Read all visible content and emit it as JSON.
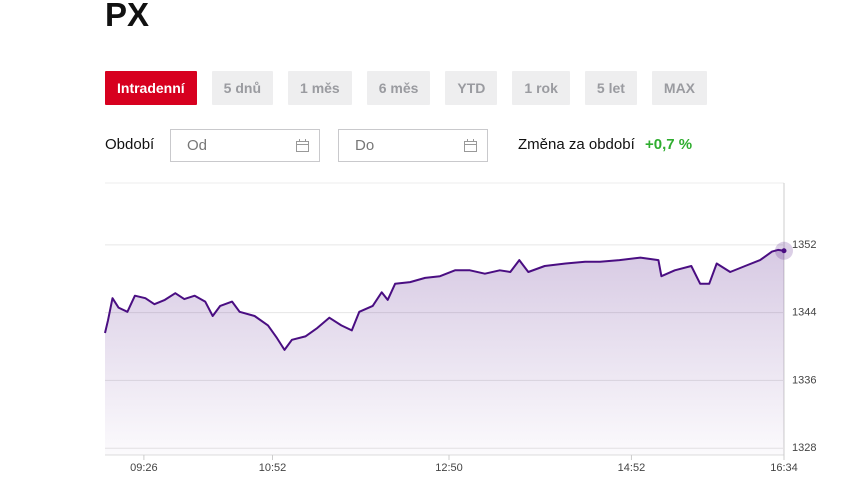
{
  "header": {
    "title": "PX"
  },
  "tabs": [
    "Intradenní",
    "5 dnů",
    "1 měs",
    "6 měs",
    "YTD",
    "1 rok",
    "5 let",
    "MAX"
  ],
  "filter": {
    "label": "Období",
    "from": "Od",
    "to": "Do",
    "change_label": "Změna za období",
    "change_value": "+0,7 %"
  },
  "chart_data": {
    "type": "line",
    "color": "#4a0e82",
    "grid": true,
    "x": [
      540,
      542,
      545,
      549,
      555,
      560,
      567,
      573,
      580,
      587,
      593,
      600,
      607,
      612,
      617,
      625,
      630,
      640,
      649,
      655,
      660,
      665,
      674,
      682,
      690,
      698,
      705,
      710,
      719,
      725,
      729,
      734,
      744,
      754,
      764,
      774,
      784,
      794,
      804,
      811,
      817,
      823,
      834,
      848,
      861,
      871,
      884,
      898,
      910,
      912,
      921,
      932,
      938,
      944,
      949,
      958,
      968,
      978,
      986,
      990,
      994
    ],
    "values": [
      1341.6,
      1343.1,
      1345.7,
      1344.6,
      1344.1,
      1346.0,
      1345.7,
      1345.0,
      1345.5,
      1346.3,
      1345.6,
      1346.0,
      1345.3,
      1343.6,
      1344.8,
      1345.3,
      1344.1,
      1343.6,
      1342.5,
      1341.0,
      1339.6,
      1340.8,
      1341.2,
      1342.2,
      1343.4,
      1342.5,
      1341.9,
      1344.1,
      1344.8,
      1346.4,
      1345.5,
      1347.4,
      1347.6,
      1348.1,
      1348.3,
      1349.0,
      1349.0,
      1348.6,
      1349.0,
      1348.8,
      1350.2,
      1348.8,
      1349.5,
      1349.8,
      1350.0,
      1350.0,
      1350.2,
      1350.5,
      1350.2,
      1348.3,
      1349.0,
      1349.5,
      1347.4,
      1347.4,
      1349.8,
      1348.8,
      1349.5,
      1350.2,
      1351.2,
      1351.4,
      1351.3
    ],
    "xlim": [
      540,
      994
    ],
    "xticks": [
      {
        "value": 566,
        "label": "09:26"
      },
      {
        "value": 652,
        "label": "10:52"
      },
      {
        "value": 770,
        "label": "12:50"
      },
      {
        "value": 892,
        "label": "14:52"
      },
      {
        "value": 994,
        "label": "16:34"
      }
    ],
    "ylim": [
      1327.2,
      1359.3
    ],
    "yticks": [
      1328,
      1336,
      1344,
      1352
    ]
  }
}
